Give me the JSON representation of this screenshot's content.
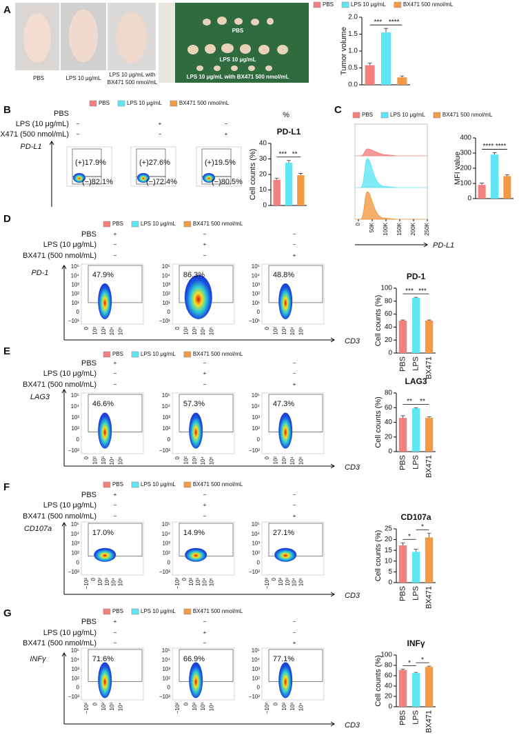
{
  "legend": [
    {
      "name": "PBS",
      "color": "#f47f7f"
    },
    {
      "name": "LPS 10 μg/mL",
      "color": "#5fe6f4"
    },
    {
      "name": "BX471 500 nmol/mL",
      "color": "#f39a45"
    }
  ],
  "panels": [
    {
      "label": "A",
      "mouse_captions": [
        "PBS",
        "LPS 10 μg/mL",
        [
          "LPS 10 μg/mL with",
          "BX471 500 nmol/mL"
        ]
      ],
      "tumor_labels": [
        "PBS",
        "LPS 10 μg/mL",
        "LPS 10 μg/mL with BX471 500 nmol/mL"
      ]
    },
    {
      "label": "B",
      "treatments": [
        {
          "name": "PBS",
          "signs": []
        },
        {
          "name": "LPS (10 μg/mL)",
          "signs": [
            "−",
            "+",
            "−"
          ]
        },
        {
          "name": "BX471 (500 nmol/mL)",
          "signs": [
            "−",
            "−",
            "+"
          ]
        }
      ],
      "unit": "%",
      "y_axis": "PD-L1",
      "gates": [
        {
          "pos": "(+)17.9%",
          "neg": "(−)82.1%"
        },
        {
          "pos": "(+)27.6%",
          "neg": "(−)72.4%"
        },
        {
          "pos": "(+)19.5%",
          "neg": "(−)80.5%"
        }
      ]
    },
    {
      "label": "C",
      "xticks": [
        "0",
        "50K",
        "100K",
        "150K",
        "200K",
        "250K"
      ],
      "x_axis": "PD-L1"
    },
    {
      "label": "D",
      "treatments": [
        {
          "name": "PBS",
          "signs": [
            "+",
            "−",
            "−"
          ]
        },
        {
          "name": "LPS (10 μg/mL)",
          "signs": [
            "−",
            "+",
            "−"
          ]
        },
        {
          "name": "BX471 (500 nmol/mL)",
          "signs": [
            "−",
            "−",
            "+"
          ]
        }
      ],
      "y_axis": "PD-1",
      "x_axis": "CD3",
      "yticks": [
        "10⁵",
        "10⁴",
        "10³",
        "10²",
        "10¹",
        "0",
        "−10¹"
      ],
      "xticks": [
        "0",
        "10²",
        "10³",
        "10⁴",
        "10⁵"
      ],
      "gates": [
        "47.9%",
        "86.3%",
        "48.8%"
      ]
    },
    {
      "label": "E",
      "treatments": [
        {
          "name": "PBS",
          "signs": [
            "+",
            "−",
            "−"
          ]
        },
        {
          "name": "LPS (10 μg/mL)",
          "signs": [
            "−",
            "+",
            "−"
          ]
        },
        {
          "name": "BX471 (500 nmol/mL)",
          "signs": [
            "−",
            "−",
            "+"
          ]
        }
      ],
      "y_axis": "LAG3",
      "x_axis": "CD3",
      "yticks": [
        "10⁵",
        "10⁴",
        "10³",
        "10²",
        "0",
        "−10²"
      ],
      "xticks": [
        "0",
        "10²",
        "10³",
        "10⁴",
        "10⁵"
      ],
      "gates": [
        "46.6%",
        "57.3%",
        "47.3%"
      ]
    },
    {
      "label": "F",
      "treatments": [
        {
          "name": "PBS",
          "signs": [
            "+",
            "−",
            "−"
          ]
        },
        {
          "name": "LPS (10 μg/mL)",
          "signs": [
            "−",
            "+",
            "−"
          ]
        },
        {
          "name": "BX471 (500 nmol/mL)",
          "signs": [
            "−",
            "−",
            "+"
          ]
        }
      ],
      "y_axis": "CD107a",
      "x_axis": "CD3",
      "yticks": [
        "10⁵",
        "10⁴",
        "10³",
        "10²",
        "0",
        "−10²"
      ],
      "xticks": [
        "−10²",
        "0",
        "10²",
        "10³",
        "10⁴",
        "10⁵"
      ],
      "gates": [
        "17.0%",
        "14.9%",
        "27.1%"
      ]
    },
    {
      "label": "G",
      "treatments": [
        {
          "name": "PBS",
          "signs": [
            "+",
            "−",
            "−"
          ]
        },
        {
          "name": "LPS (10 μg/mL)",
          "signs": [
            "−",
            "+",
            "−"
          ]
        },
        {
          "name": "BX471 (500 nmol/mL)",
          "signs": [
            "−",
            "−",
            "+"
          ]
        }
      ],
      "y_axis": "INFγ",
      "x_axis": "CD3",
      "yticks": [
        "10⁵",
        "10⁴",
        "10³",
        "10²",
        "0",
        "−10²"
      ],
      "xticks": [
        "−10²",
        "0",
        "10²",
        "10³",
        "10⁴"
      ],
      "gates": [
        "71.6%",
        "66.9%",
        "77.1%"
      ]
    }
  ],
  "chart_data": [
    {
      "type": "bar",
      "ylabel": "Tumor volume",
      "ylim": [
        0,
        2
      ],
      "yticks": [
        {
          "value": 0,
          "label": "0.0"
        },
        0.5,
        {
          "value": 1,
          "label": "1.0"
        },
        1.5,
        {
          "value": 2,
          "label": "2.0"
        }
      ],
      "values": [
        0.58,
        1.55,
        0.22
      ],
      "errors": [
        0.06,
        0.12,
        0.04
      ],
      "significance": [
        "***",
        "****"
      ]
    },
    {
      "type": "bar",
      "title": "PD-L1",
      "ylabel": "Cell counts (%)",
      "ylim": [
        0,
        40
      ],
      "yticks": [
        0,
        10,
        20,
        30,
        40
      ],
      "values": [
        16.5,
        27.5,
        19.5
      ],
      "errors": [
        1,
        1.5,
        1.2
      ],
      "significance": [
        "***",
        "**"
      ]
    },
    {
      "type": "bar",
      "ylabel": "MFI value",
      "ylim": [
        0,
        400
      ],
      "yticks": [
        0,
        100,
        200,
        300,
        400
      ],
      "values": [
        90,
        290,
        148
      ],
      "errors": [
        12,
        12,
        8
      ],
      "significance": [
        "****",
        "****"
      ]
    },
    {
      "type": "bar",
      "title": "PD-1",
      "ylabel": "Cell counts (%)",
      "categories": [
        "PBS",
        "LPS",
        "BX471"
      ],
      "ylim": [
        0,
        100
      ],
      "yticks": [
        0,
        20,
        40,
        60,
        80,
        100
      ],
      "values": [
        50,
        85,
        50
      ],
      "errors": [
        1,
        1,
        1
      ],
      "significance": [
        "***",
        "***"
      ]
    },
    {
      "type": "bar",
      "title": "LAG3",
      "ylabel": "Cell counts (%)",
      "categories": [
        "PBS",
        "LPS",
        "BX471"
      ],
      "ylim": [
        0,
        80
      ],
      "yticks": [
        0,
        20,
        40,
        60,
        80
      ],
      "values": [
        46,
        59,
        46
      ],
      "errors": [
        3,
        0.8,
        1.5
      ],
      "significance": [
        "**",
        "**"
      ]
    },
    {
      "type": "bar",
      "title": "CD107a",
      "ylabel": "Cell counts (%)",
      "categories": [
        "PBS",
        "LPS",
        "BX471"
      ],
      "ylim": [
        0,
        25
      ],
      "yticks": [
        0,
        5,
        10,
        15,
        20,
        25
      ],
      "values": [
        17.3,
        14.3,
        21
      ],
      "errors": [
        1.2,
        1.2,
        2
      ],
      "significance": [
        "*",
        "*"
      ]
    },
    {
      "type": "bar",
      "title": "INFγ",
      "ylabel": "Cell counts (%)",
      "categories": [
        "PBS",
        "LPS",
        "BX471"
      ],
      "ylim": [
        0,
        100
      ],
      "yticks": [
        0,
        20,
        40,
        60,
        80,
        100
      ],
      "values": [
        71,
        65,
        77
      ],
      "errors": [
        1.5,
        1.5,
        1.5
      ],
      "significance": [
        "*",
        "*"
      ]
    }
  ]
}
